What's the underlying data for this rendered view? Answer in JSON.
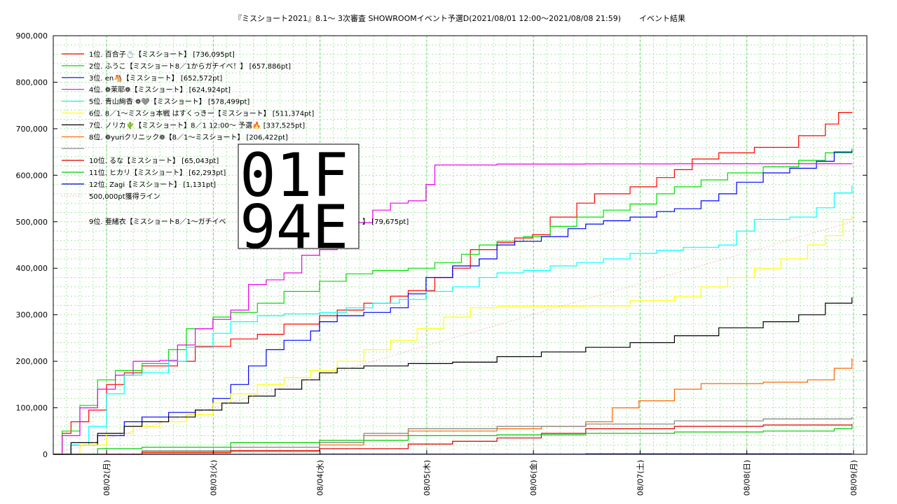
{
  "chart_data": {
    "type": "line",
    "title": "『ミスショート2021』8.1〜 3次審査 SHOWROOMイベント予選D(2021/08/01 12:00〜2021/08/08 21:59)",
    "subtitle": "イベント結果",
    "x_ticks": [
      "08/02(月)",
      "08/03(火)",
      "08/04(水)",
      "08/05(木)",
      "08/06(金)",
      "08/07(土)",
      "08/08(日)",
      "08/09(月)"
    ],
    "y_ticks": [
      "0",
      "100,000",
      "200,000",
      "300,000",
      "400,000",
      "500,000",
      "600,000",
      "700,000",
      "800,000",
      "900,000"
    ],
    "xlim": [
      "2021-08-01 12:00",
      "2021-08-09 03:00"
    ],
    "ylim": [
      0,
      900000
    ],
    "grid": true,
    "legend_position": "top-left",
    "overlay_box": [
      "01F",
      "94E"
    ],
    "series": [
      {
        "name": "1位. 百合子💍【ミスショート】 [736,095pt]",
        "color": "#ff0000",
        "points": [
          [
            0,
            0
          ],
          [
            0.1,
            45000
          ],
          [
            0.2,
            70000
          ],
          [
            0.4,
            95000
          ],
          [
            0.6,
            150000
          ],
          [
            0.8,
            175000
          ],
          [
            1.0,
            190000
          ],
          [
            1.4,
            200000
          ],
          [
            1.6,
            232000
          ],
          [
            2.0,
            248000
          ],
          [
            2.3,
            258000
          ],
          [
            2.6,
            280000
          ],
          [
            3.0,
            298000
          ],
          [
            3.2,
            310000
          ],
          [
            3.5,
            325000
          ],
          [
            3.8,
            340000
          ],
          [
            4.0,
            352000
          ],
          [
            4.3,
            380000
          ],
          [
            4.5,
            400000
          ],
          [
            4.7,
            440000
          ],
          [
            5.0,
            455000
          ],
          [
            5.2,
            465000
          ],
          [
            5.4,
            472000
          ],
          [
            5.6,
            510000
          ],
          [
            5.9,
            540000
          ],
          [
            6.1,
            560000
          ],
          [
            6.5,
            575000
          ],
          [
            6.8,
            595000
          ],
          [
            7.0,
            612000
          ],
          [
            7.2,
            635000
          ],
          [
            7.5,
            648000
          ],
          [
            7.9,
            660000
          ],
          [
            8.4,
            685000
          ],
          [
            8.7,
            710000
          ],
          [
            8.85,
            735000
          ],
          [
            9.0,
            736095
          ]
        ]
      },
      {
        "name": "2位. ふうこ【ミスショート8／1からガチイベ！】 [657,886pt]",
        "color": "#00dd00",
        "points": [
          [
            0,
            0
          ],
          [
            0.1,
            50000
          ],
          [
            0.3,
            105000
          ],
          [
            0.5,
            160000
          ],
          [
            0.7,
            180000
          ],
          [
            1.0,
            195000
          ],
          [
            1.3,
            225000
          ],
          [
            1.5,
            270000
          ],
          [
            1.8,
            295000
          ],
          [
            2.0,
            305000
          ],
          [
            2.3,
            325000
          ],
          [
            2.6,
            350000
          ],
          [
            3.0,
            372000
          ],
          [
            3.3,
            388000
          ],
          [
            3.6,
            395000
          ],
          [
            4.0,
            400000
          ],
          [
            4.3,
            412000
          ],
          [
            4.6,
            430000
          ],
          [
            4.8,
            450000
          ],
          [
            5.0,
            458000
          ],
          [
            5.3,
            468000
          ],
          [
            5.6,
            490000
          ],
          [
            5.9,
            510000
          ],
          [
            6.2,
            525000
          ],
          [
            6.5,
            538000
          ],
          [
            6.8,
            560000
          ],
          [
            7.0,
            575000
          ],
          [
            7.3,
            590000
          ],
          [
            7.6,
            605000
          ],
          [
            8.0,
            618000
          ],
          [
            8.4,
            632000
          ],
          [
            8.7,
            648000
          ],
          [
            9.0,
            657886
          ]
        ]
      },
      {
        "name": "3位. en🐴【ミスショート】 [652,572pt]",
        "color": "#0000ff",
        "points": [
          [
            0,
            0
          ],
          [
            0.2,
            20000
          ],
          [
            0.5,
            40000
          ],
          [
            0.8,
            70000
          ],
          [
            1.0,
            80000
          ],
          [
            1.3,
            90000
          ],
          [
            1.6,
            95000
          ],
          [
            1.8,
            120000
          ],
          [
            2.0,
            150000
          ],
          [
            2.2,
            190000
          ],
          [
            2.4,
            225000
          ],
          [
            2.6,
            245000
          ],
          [
            2.9,
            265000
          ],
          [
            3.0,
            285000
          ],
          [
            3.2,
            298000
          ],
          [
            3.5,
            305000
          ],
          [
            3.8,
            315000
          ],
          [
            4.0,
            345000
          ],
          [
            4.2,
            380000
          ],
          [
            4.5,
            405000
          ],
          [
            4.8,
            420000
          ],
          [
            5.0,
            450000
          ],
          [
            5.2,
            458000
          ],
          [
            5.5,
            468000
          ],
          [
            5.8,
            485000
          ],
          [
            6.0,
            495000
          ],
          [
            6.2,
            502000
          ],
          [
            6.5,
            510000
          ],
          [
            6.8,
            522000
          ],
          [
            7.0,
            528000
          ],
          [
            7.3,
            545000
          ],
          [
            7.5,
            560000
          ],
          [
            7.7,
            585000
          ],
          [
            8.0,
            605000
          ],
          [
            8.3,
            615000
          ],
          [
            8.6,
            630000
          ],
          [
            8.8,
            650000
          ],
          [
            9.0,
            652572
          ]
        ]
      },
      {
        "name": "4位. ❁茉耶❁【ミスショート】 [624,924pt]",
        "color": "#ee00ee",
        "points": [
          [
            0,
            0
          ],
          [
            0.1,
            40000
          ],
          [
            0.3,
            100000
          ],
          [
            0.5,
            140000
          ],
          [
            0.7,
            170000
          ],
          [
            0.9,
            200000
          ],
          [
            1.2,
            202000
          ],
          [
            1.4,
            235000
          ],
          [
            1.6,
            270000
          ],
          [
            1.8,
            290000
          ],
          [
            2.0,
            310000
          ],
          [
            2.2,
            365000
          ],
          [
            2.4,
            375000
          ],
          [
            2.6,
            390000
          ],
          [
            2.8,
            428000
          ],
          [
            3.0,
            440000
          ],
          [
            3.2,
            470000
          ],
          [
            3.4,
            498000
          ],
          [
            3.6,
            525000
          ],
          [
            3.8,
            540000
          ],
          [
            4.0,
            545000
          ],
          [
            4.2,
            580000
          ],
          [
            4.3,
            622000
          ],
          [
            5.0,
            624000
          ],
          [
            6.0,
            624500
          ],
          [
            7.0,
            624700
          ],
          [
            8.0,
            624800
          ],
          [
            9.0,
            624924
          ]
        ]
      },
      {
        "name": "5位. 青山絢香 ❁🩶【ミスショート】 [578,499pt]",
        "color": "#00ffff",
        "points": [
          [
            0,
            0
          ],
          [
            0.2,
            20000
          ],
          [
            0.4,
            60000
          ],
          [
            0.6,
            130000
          ],
          [
            0.8,
            170000
          ],
          [
            1.0,
            175000
          ],
          [
            1.3,
            200000
          ],
          [
            1.5,
            230000
          ],
          [
            1.8,
            260000
          ],
          [
            2.0,
            285000
          ],
          [
            2.3,
            298000
          ],
          [
            2.6,
            302000
          ],
          [
            3.0,
            305000
          ],
          [
            3.3,
            315000
          ],
          [
            3.6,
            325000
          ],
          [
            3.9,
            333000
          ],
          [
            4.2,
            350000
          ],
          [
            4.5,
            360000
          ],
          [
            4.8,
            380000
          ],
          [
            5.0,
            390000
          ],
          [
            5.3,
            395000
          ],
          [
            5.6,
            405000
          ],
          [
            5.9,
            412000
          ],
          [
            6.2,
            420000
          ],
          [
            6.5,
            432000
          ],
          [
            6.8,
            438000
          ],
          [
            7.1,
            445000
          ],
          [
            7.5,
            450000
          ],
          [
            7.7,
            480000
          ],
          [
            7.9,
            505000
          ],
          [
            8.3,
            510000
          ],
          [
            8.6,
            530000
          ],
          [
            8.8,
            562000
          ],
          [
            9.0,
            578499
          ]
        ]
      },
      {
        "name": "6位. 8／1〜ミスショ本戦 はすくっきー【ミスショート】 [511,374pt]",
        "color": "#ffff00",
        "points": [
          [
            0,
            0
          ],
          [
            0.3,
            20000
          ],
          [
            0.6,
            45000
          ],
          [
            0.9,
            60000
          ],
          [
            1.2,
            70000
          ],
          [
            1.5,
            85000
          ],
          [
            1.8,
            110000
          ],
          [
            2.0,
            130000
          ],
          [
            2.3,
            150000
          ],
          [
            2.6,
            165000
          ],
          [
            2.9,
            180000
          ],
          [
            3.2,
            200000
          ],
          [
            3.5,
            225000
          ],
          [
            3.8,
            245000
          ],
          [
            4.1,
            270000
          ],
          [
            4.4,
            295000
          ],
          [
            4.7,
            315000
          ],
          [
            5.0,
            318000
          ],
          [
            5.5,
            318500
          ],
          [
            6.0,
            319000
          ],
          [
            6.5,
            330000
          ],
          [
            7.0,
            340000
          ],
          [
            7.3,
            360000
          ],
          [
            7.6,
            380000
          ],
          [
            7.9,
            400000
          ],
          [
            8.2,
            420000
          ],
          [
            8.5,
            450000
          ],
          [
            8.7,
            470000
          ],
          [
            8.9,
            505000
          ],
          [
            9.0,
            511374
          ]
        ]
      },
      {
        "name": "7位. ノリカ🌵【ミスショート】8／1 12:00〜 予選🔥 [337,525pt]",
        "color": "#000000",
        "points": [
          [
            0,
            0
          ],
          [
            0.2,
            25000
          ],
          [
            0.5,
            45000
          ],
          [
            0.8,
            60000
          ],
          [
            1.0,
            70000
          ],
          [
            1.3,
            80000
          ],
          [
            1.6,
            95000
          ],
          [
            1.9,
            110000
          ],
          [
            2.2,
            125000
          ],
          [
            2.5,
            140000
          ],
          [
            2.8,
            160000
          ],
          [
            3.0,
            175000
          ],
          [
            3.2,
            185000
          ],
          [
            3.5,
            190000
          ],
          [
            4.0,
            195000
          ],
          [
            4.5,
            198000
          ],
          [
            5.0,
            210000
          ],
          [
            5.5,
            220000
          ],
          [
            6.0,
            230000
          ],
          [
            6.5,
            240000
          ],
          [
            7.0,
            255000
          ],
          [
            7.5,
            272000
          ],
          [
            8.0,
            285000
          ],
          [
            8.4,
            300000
          ],
          [
            8.7,
            325000
          ],
          [
            9.0,
            337525
          ]
        ]
      },
      {
        "name": "8位. ❁yuriクリニック❁【8／1〜ミスショート】 [206,422pt]",
        "color": "#ff6600",
        "points": [
          [
            0,
            0
          ],
          [
            1.0,
            3000
          ],
          [
            2.0,
            6000
          ],
          [
            3.0,
            20000
          ],
          [
            3.5,
            40000
          ],
          [
            4.0,
            50000
          ],
          [
            5.0,
            55000
          ],
          [
            5.5,
            60000
          ],
          [
            6.0,
            70000
          ],
          [
            6.3,
            100000
          ],
          [
            6.6,
            115000
          ],
          [
            7.0,
            140000
          ],
          [
            7.3,
            152000
          ],
          [
            8.0,
            155000
          ],
          [
            8.5,
            160000
          ],
          [
            8.8,
            185000
          ],
          [
            9.0,
            206422
          ]
        ]
      },
      {
        "name": "",
        "color": "#808080",
        "points": [
          [
            0,
            0
          ],
          [
            1.0,
            8000
          ],
          [
            2.0,
            15000
          ],
          [
            3.0,
            25000
          ],
          [
            3.5,
            45000
          ],
          [
            4.0,
            55000
          ],
          [
            5.0,
            60000
          ],
          [
            6.0,
            65000
          ],
          [
            7.0,
            72000
          ],
          [
            8.0,
            76000
          ],
          [
            9.0,
            79675
          ]
        ]
      },
      {
        "name": "10位. るな【ミスショート】 [65,043pt]",
        "color": "#dd0000",
        "points": [
          [
            0,
            0
          ],
          [
            1.0,
            5000
          ],
          [
            2.0,
            8000
          ],
          [
            3.0,
            12000
          ],
          [
            4.0,
            22000
          ],
          [
            4.5,
            28000
          ],
          [
            5.0,
            35000
          ],
          [
            5.5,
            45000
          ],
          [
            6.0,
            55000
          ],
          [
            7.0,
            60000
          ],
          [
            8.0,
            63000
          ],
          [
            9.0,
            65043
          ]
        ]
      },
      {
        "name": "11位. ヒカリ【ミスショート】 [62,293pt]",
        "color": "#00cc00",
        "points": [
          [
            0,
            0
          ],
          [
            0.5,
            12000
          ],
          [
            1.0,
            15000
          ],
          [
            2.0,
            25000
          ],
          [
            3.0,
            30000
          ],
          [
            4.0,
            40000
          ],
          [
            5.0,
            42000
          ],
          [
            6.0,
            45000
          ],
          [
            7.0,
            48000
          ],
          [
            8.0,
            50000
          ],
          [
            8.8,
            55000
          ],
          [
            9.0,
            62293
          ]
        ]
      },
      {
        "name": "12位. Zagi【ミスショート】 [1,131pt]",
        "color": "#0000cc",
        "points": [
          [
            0,
            0
          ],
          [
            3.0,
            500
          ],
          [
            6.0,
            900
          ],
          [
            9.0,
            1131
          ]
        ]
      },
      {
        "name": "500,000pt獲得ライン",
        "color": "#ff8888",
        "dotted": true,
        "points": [
          [
            0,
            0
          ],
          [
            9.0,
            500000
          ]
        ]
      }
    ],
    "hidden_legend_entry": "9位. 亜緒衣【ミスショート8／1〜ガチイベ",
    "hidden_legend_value": "】 [79,675pt]"
  }
}
